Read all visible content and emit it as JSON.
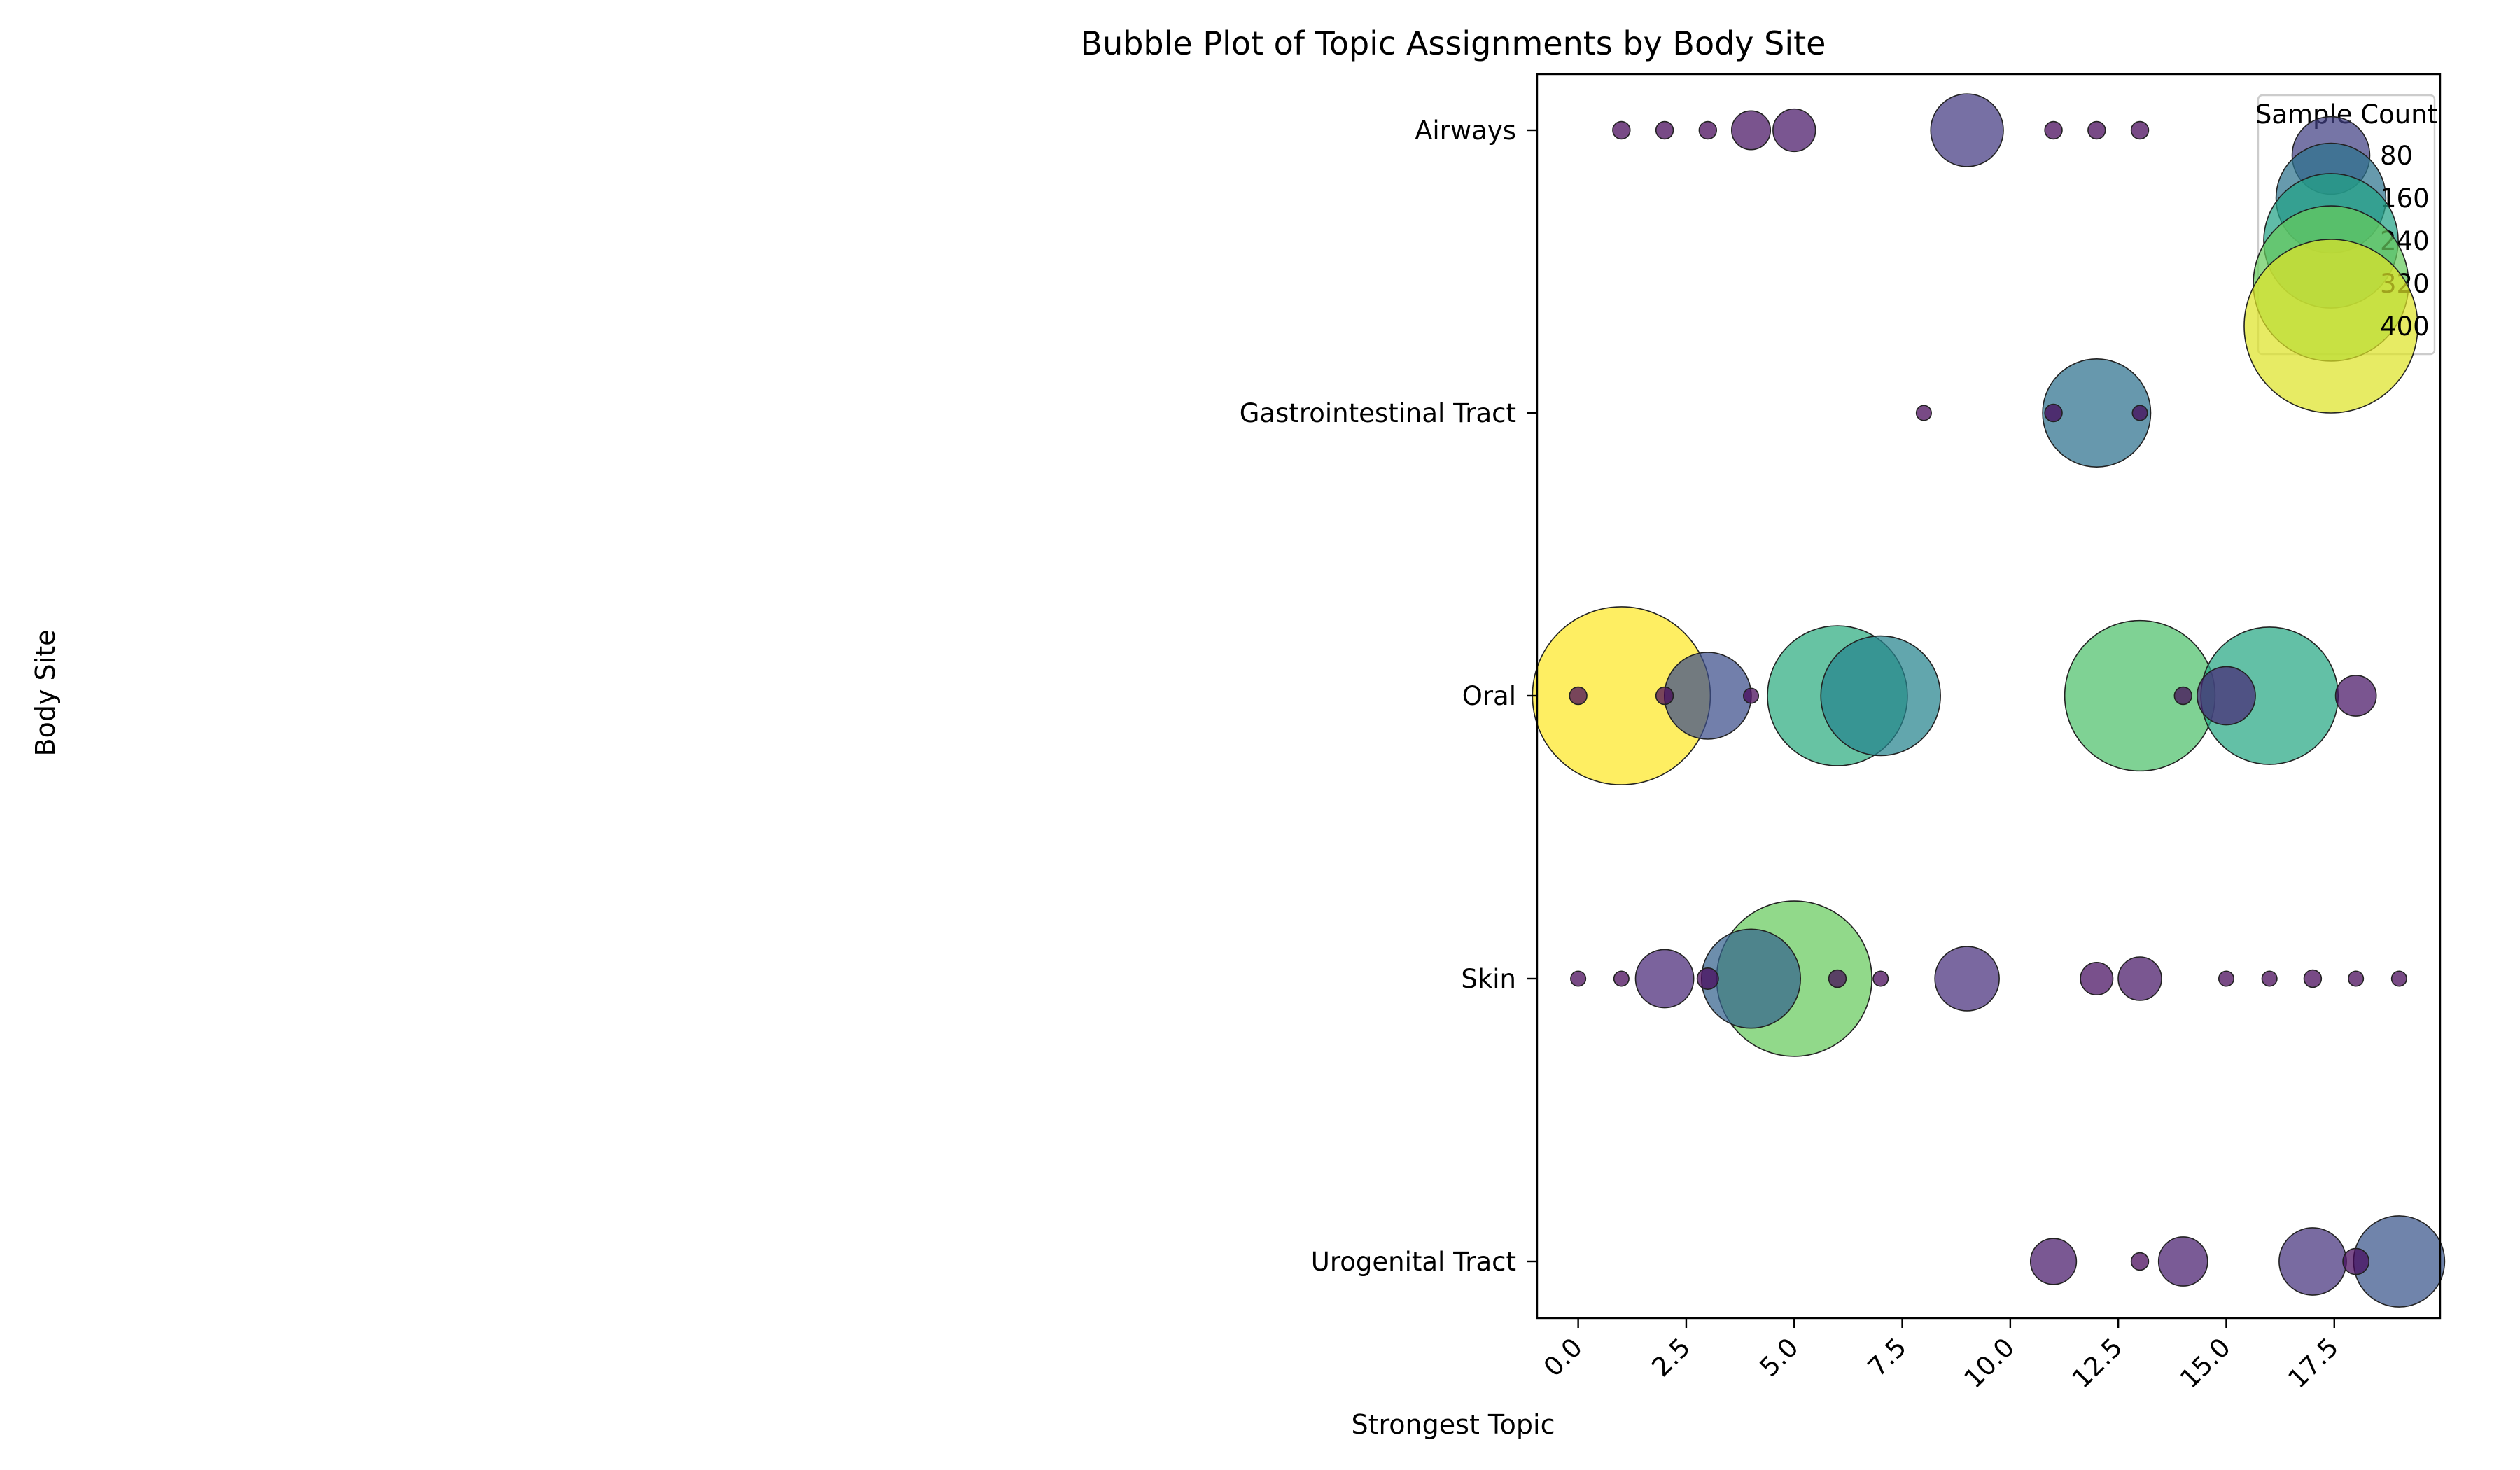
{
  "chart_data": {
    "type": "scatter",
    "title": "Bubble Plot of Topic Assignments by Body Site",
    "xlabel": "Strongest Topic",
    "ylabel": "Body Site",
    "xlim": [
      -0.95,
      19.95
    ],
    "xticks": [
      0.0,
      2.5,
      5.0,
      7.5,
      10.0,
      12.5,
      15.0,
      17.5
    ],
    "xtick_labels": [
      "0.0",
      "2.5",
      "5.0",
      "7.5",
      "10.0",
      "12.5",
      "15.0",
      "17.5"
    ],
    "categories": [
      "Airways",
      "Gastrointestinal Tract",
      "Oral",
      "Skin",
      "Urogenital Tract"
    ],
    "size_scale": "area proportional to sample count",
    "color_scale": "viridis",
    "color_range": [
      0,
      420
    ],
    "legend": {
      "title": "Sample Count",
      "position": "top-right",
      "entries": [
        {
          "label": "80",
          "value": 80
        },
        {
          "label": "160",
          "value": 160
        },
        {
          "label": "240",
          "value": 240
        },
        {
          "label": "320",
          "value": 320
        },
        {
          "label": "400",
          "value": 400
        }
      ]
    },
    "points": [
      {
        "site": "Airways",
        "topic": 1,
        "count": 4
      },
      {
        "site": "Airways",
        "topic": 2,
        "count": 4
      },
      {
        "site": "Airways",
        "topic": 3,
        "count": 4
      },
      {
        "site": "Airways",
        "topic": 4,
        "count": 20
      },
      {
        "site": "Airways",
        "topic": 5,
        "count": 24
      },
      {
        "site": "Airways",
        "topic": 9,
        "count": 70
      },
      {
        "site": "Airways",
        "topic": 11,
        "count": 4
      },
      {
        "site": "Airways",
        "topic": 12,
        "count": 4
      },
      {
        "site": "Airways",
        "topic": 13,
        "count": 4
      },
      {
        "site": "Gastrointestinal Tract",
        "topic": 8,
        "count": 3
      },
      {
        "site": "Gastrointestinal Tract",
        "topic": 11,
        "count": 4
      },
      {
        "site": "Gastrointestinal Tract",
        "topic": 12,
        "count": 155
      },
      {
        "site": "Gastrointestinal Tract",
        "topic": 13,
        "count": 3
      },
      {
        "site": "Oral",
        "topic": 0,
        "count": 4
      },
      {
        "site": "Oral",
        "topic": 1,
        "count": 420
      },
      {
        "site": "Oral",
        "topic": 2,
        "count": 4
      },
      {
        "site": "Oral",
        "topic": 3,
        "count": 100
      },
      {
        "site": "Oral",
        "topic": 4,
        "count": 3
      },
      {
        "site": "Oral",
        "topic": 6,
        "count": 260
      },
      {
        "site": "Oral",
        "topic": 7,
        "count": 190
      },
      {
        "site": "Oral",
        "topic": 13,
        "count": 300
      },
      {
        "site": "Oral",
        "topic": 14,
        "count": 4
      },
      {
        "site": "Oral",
        "topic": 15,
        "count": 45
      },
      {
        "site": "Oral",
        "topic": 16,
        "count": 250
      },
      {
        "site": "Oral",
        "topic": 18,
        "count": 22
      },
      {
        "site": "Skin",
        "topic": 0,
        "count": 3
      },
      {
        "site": "Skin",
        "topic": 1,
        "count": 3
      },
      {
        "site": "Skin",
        "topic": 2,
        "count": 45
      },
      {
        "site": "Skin",
        "topic": 3,
        "count": 6
      },
      {
        "site": "Skin",
        "topic": 4,
        "count": 130
      },
      {
        "site": "Skin",
        "topic": 5,
        "count": 320
      },
      {
        "site": "Skin",
        "topic": 6,
        "count": 4
      },
      {
        "site": "Skin",
        "topic": 7,
        "count": 3
      },
      {
        "site": "Skin",
        "topic": 9,
        "count": 55
      },
      {
        "site": "Skin",
        "topic": 12,
        "count": 14
      },
      {
        "site": "Skin",
        "topic": 13,
        "count": 25
      },
      {
        "site": "Skin",
        "topic": 15,
        "count": 3
      },
      {
        "site": "Skin",
        "topic": 16,
        "count": 3
      },
      {
        "site": "Skin",
        "topic": 17,
        "count": 4
      },
      {
        "site": "Skin",
        "topic": 18,
        "count": 3
      },
      {
        "site": "Skin",
        "topic": 19,
        "count": 3
      },
      {
        "site": "Urogenital Tract",
        "topic": 11,
        "count": 28
      },
      {
        "site": "Urogenital Tract",
        "topic": 13,
        "count": 4
      },
      {
        "site": "Urogenital Tract",
        "topic": 14,
        "count": 32
      },
      {
        "site": "Urogenital Tract",
        "topic": 17,
        "count": 60
      },
      {
        "site": "Urogenital Tract",
        "topic": 18,
        "count": 9
      },
      {
        "site": "Urogenital Tract",
        "topic": 19,
        "count": 110
      }
    ]
  }
}
